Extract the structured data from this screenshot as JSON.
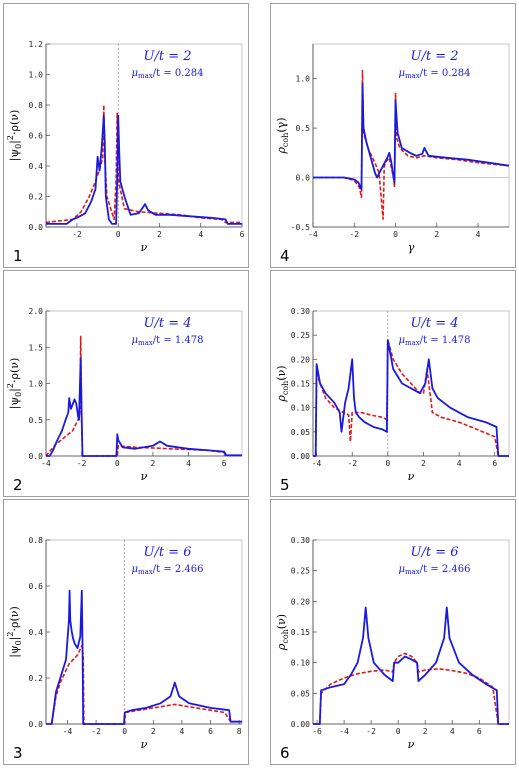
{
  "colors": {
    "dmft": "#1a1adf",
    "approx": "#e01818",
    "axis": "#444444",
    "annot": "#1a1adf"
  },
  "chart_data": [
    {
      "type": "line",
      "panel_number": "1",
      "annotation": {
        "u_label": "U/t  = 2",
        "mu_label": "μmax/t = 0.284"
      },
      "xlabel": "ν",
      "ylabel": "|ψ0|²·ρ(ν)",
      "xlim": [
        -3.5,
        6
      ],
      "ylim": [
        0,
        1.2
      ],
      "xticks": [
        -2,
        0,
        2,
        4,
        6
      ],
      "yticks": [
        0.0,
        0.2,
        0.4,
        0.6,
        0.8,
        1.0,
        1.2
      ],
      "ytick_labels": [
        "0.0",
        "0.2",
        "0.4",
        "0.6",
        "0.8",
        "1.0",
        "1.2"
      ],
      "vline": 0,
      "series": [
        {
          "color_key": "dmft",
          "style": "solid",
          "x": [
            -3.5,
            -2.5,
            -2.2,
            -2.0,
            -1.6,
            -1.3,
            -1.1,
            -1.0,
            -0.9,
            -0.8,
            -0.75,
            -0.7,
            -0.65,
            -0.6,
            -0.45,
            -0.3,
            -0.2,
            -0.1,
            -0.05,
            0.0,
            0.05,
            0.1,
            0.3,
            0.6,
            1.0,
            1.2,
            1.3,
            1.45,
            1.8,
            2.5,
            3.5,
            4.5,
            5.2,
            5.3,
            6.0
          ],
          "y": [
            0.02,
            0.02,
            0.05,
            0.06,
            0.09,
            0.17,
            0.25,
            0.46,
            0.37,
            0.52,
            0.62,
            0.73,
            0.55,
            0.2,
            0.05,
            0.02,
            0.02,
            0.02,
            0.3,
            0.73,
            0.5,
            0.3,
            0.2,
            0.08,
            0.09,
            0.13,
            0.15,
            0.11,
            0.08,
            0.08,
            0.07,
            0.06,
            0.05,
            0.02,
            0.02
          ]
        },
        {
          "color_key": "approx",
          "style": "dashed",
          "x": [
            -3.5,
            -2.2,
            -1.8,
            -1.4,
            -1.1,
            -0.9,
            -0.75,
            -0.7,
            -0.65,
            -0.55,
            -0.2,
            -0.1,
            -0.05,
            0.0,
            0.05,
            0.3,
            1.0,
            2.0,
            3.0,
            4.0,
            5.0,
            5.2,
            6.0
          ],
          "y": [
            0.03,
            0.05,
            0.1,
            0.2,
            0.3,
            0.38,
            0.45,
            0.8,
            0.45,
            0.2,
            0.05,
            0.3,
            0.75,
            0.35,
            0.28,
            0.12,
            0.1,
            0.09,
            0.08,
            0.06,
            0.05,
            0.03,
            0.03
          ]
        }
      ]
    },
    {
      "type": "line",
      "panel_number": "2",
      "annotation": {
        "u_label": "U/t  = 4",
        "mu_label": "μmax/t = 1.478"
      },
      "xlabel": "ν",
      "ylabel": "|ψ0|²·ρ(ν)",
      "xlim": [
        -4,
        7
      ],
      "ylim": [
        0,
        2.0
      ],
      "xticks": [
        -4,
        -2,
        0,
        2,
        4,
        6
      ],
      "yticks": [
        0.0,
        0.5,
        1.0,
        1.5,
        2.0
      ],
      "ytick_labels": [
        "0.0",
        "0.5",
        "1.0",
        "1.5",
        "2.0"
      ],
      "series": [
        {
          "color_key": "dmft",
          "style": "solid",
          "x": [
            -4,
            -3.8,
            -3.6,
            -3.4,
            -3.1,
            -2.9,
            -2.75,
            -2.7,
            -2.6,
            -2.4,
            -2.3,
            -2.2,
            -2.15,
            -2.05,
            -2.0,
            -1.95,
            -0.05,
            0.0,
            0.05,
            0.3,
            1.0,
            2.0,
            2.4,
            2.8,
            4.0,
            5.5,
            6.0,
            6.1,
            7.0
          ],
          "y": [
            0.0,
            0.0,
            0.08,
            0.2,
            0.35,
            0.5,
            0.6,
            0.8,
            0.65,
            0.78,
            0.72,
            0.55,
            0.5,
            1.35,
            0.6,
            0.0,
            0.0,
            0.3,
            0.22,
            0.12,
            0.1,
            0.14,
            0.2,
            0.14,
            0.1,
            0.07,
            0.06,
            0.01,
            0.01
          ]
        },
        {
          "color_key": "approx",
          "style": "dashed",
          "x": [
            -4,
            -3.5,
            -3.0,
            -2.5,
            -2.2,
            -2.1,
            -2.05,
            -2.0,
            -1.95,
            0.0,
            0.05,
            1.0,
            2.0,
            3.0,
            4.0,
            5.0,
            6.0,
            6.2
          ],
          "y": [
            0.0,
            0.15,
            0.25,
            0.35,
            0.5,
            0.6,
            1.65,
            0.5,
            0.0,
            0.0,
            0.14,
            0.12,
            0.11,
            0.1,
            0.09,
            0.08,
            0.05,
            0.01
          ]
        }
      ]
    },
    {
      "type": "line",
      "panel_number": "3",
      "annotation": {
        "u_label": "U/t  = 6",
        "mu_label": "μmax/t = 2.466"
      },
      "xlabel": "ν",
      "ylabel": "|ψ0|²·ρ(ν)",
      "xlim": [
        -5.5,
        8.2
      ],
      "ylim": [
        0,
        0.8
      ],
      "xticks": [
        -4,
        -2,
        0,
        2,
        4,
        6,
        8
      ],
      "yticks": [
        0.0,
        0.2,
        0.4,
        0.6,
        0.8
      ],
      "ytick_labels": [
        "0.0",
        "0.2",
        "0.4",
        "0.6",
        "0.8"
      ],
      "vline": 0,
      "series": [
        {
          "color_key": "dmft",
          "style": "solid",
          "x": [
            -5.5,
            -5.1,
            -4.8,
            -4.5,
            -4.1,
            -3.9,
            -3.85,
            -3.8,
            -3.7,
            -3.6,
            -3.5,
            -3.3,
            -3.1,
            -3.0,
            -2.95,
            -2.9,
            -2.85,
            -0.05,
            0.0,
            0.5,
            1.5,
            2.5,
            3.2,
            3.5,
            3.8,
            4.5,
            6.0,
            7.3,
            7.4,
            8.2
          ],
          "y": [
            0.0,
            0.0,
            0.14,
            0.2,
            0.28,
            0.45,
            0.58,
            0.45,
            0.4,
            0.37,
            0.35,
            0.33,
            0.38,
            0.58,
            0.35,
            0.0,
            0.0,
            0.0,
            0.05,
            0.06,
            0.07,
            0.09,
            0.12,
            0.18,
            0.12,
            0.09,
            0.07,
            0.06,
            0.01,
            0.01
          ]
        },
        {
          "color_key": "approx",
          "style": "dashed",
          "x": [
            -5.1,
            -4.8,
            -4.5,
            -4.2,
            -3.9,
            -3.6,
            -3.3,
            -3.0,
            -2.9,
            -2.85,
            0.0,
            0.05,
            1.0,
            2.0,
            3.0,
            3.5,
            4.0,
            5.0,
            6.0,
            7.0,
            7.4,
            8.2
          ],
          "y": [
            0.0,
            0.12,
            0.18,
            0.22,
            0.26,
            0.28,
            0.3,
            0.34,
            0.3,
            0.0,
            0.0,
            0.05,
            0.06,
            0.07,
            0.08,
            0.085,
            0.08,
            0.07,
            0.06,
            0.05,
            0.01,
            0.01
          ]
        }
      ]
    },
    {
      "type": "line",
      "panel_number": "4",
      "annotation": {
        "u_label": "U/t  = 2",
        "mu_label": "μmax/t = 0.284"
      },
      "xlabel": "γ",
      "ylabel": "ρcoh(γ)",
      "xlim": [
        -4,
        5.5
      ],
      "ylim": [
        -0.5,
        1.35
      ],
      "xticks": [
        -4,
        -2,
        0,
        2,
        4
      ],
      "yticks": [
        -0.5,
        0.0,
        0.5,
        1.0
      ],
      "ytick_labels": [
        "-0.5",
        "0.0",
        "0.5",
        "1.0"
      ],
      "series": [
        {
          "color_key": "dmft",
          "style": "solid",
          "x": [
            -4,
            -2.5,
            -2.0,
            -1.8,
            -1.65,
            -1.6,
            -1.55,
            -1.4,
            -1.2,
            -1.0,
            -0.9,
            -0.6,
            -0.4,
            -0.3,
            -0.2,
            -0.1,
            -0.05,
            0.0,
            0.1,
            0.3,
            0.7,
            1.0,
            1.3,
            1.4,
            1.6,
            2.5,
            3.5,
            4.5,
            5.5
          ],
          "y": [
            0.0,
            0.0,
            -0.02,
            -0.05,
            -0.12,
            0.95,
            0.5,
            0.35,
            0.2,
            0.05,
            0.0,
            0.12,
            0.2,
            0.25,
            0.15,
            0.0,
            -0.05,
            0.78,
            0.45,
            0.3,
            0.25,
            0.22,
            0.24,
            0.3,
            0.22,
            0.2,
            0.18,
            0.15,
            0.12
          ]
        },
        {
          "color_key": "approx",
          "style": "dashed",
          "x": [
            -4,
            -2.5,
            -2.0,
            -1.75,
            -1.65,
            -1.6,
            -1.55,
            -1.3,
            -1.0,
            -0.8,
            -0.6,
            -0.55,
            -0.5,
            -0.3,
            -0.1,
            -0.05,
            0.0,
            0.05,
            0.2,
            0.6,
            1.0,
            1.4,
            2.0,
            3.0,
            4.0,
            5.5
          ],
          "y": [
            0.0,
            0.0,
            -0.03,
            -0.1,
            -0.2,
            1.08,
            0.45,
            0.28,
            0.15,
            0.05,
            -0.42,
            0.1,
            0.15,
            0.2,
            0.0,
            -0.1,
            0.85,
            0.4,
            0.3,
            0.22,
            0.2,
            0.22,
            0.2,
            0.18,
            0.15,
            0.12
          ]
        }
      ]
    },
    {
      "type": "line",
      "panel_number": "5",
      "annotation": {
        "u_label": "U/t  = 4",
        "mu_label": "μmax/t = 1.478"
      },
      "xlabel": "ν",
      "ylabel": "ρcoh(ν)",
      "xlim": [
        -4.2,
        6.8
      ],
      "ylim": [
        0,
        0.3
      ],
      "xticks": [
        -4,
        -2,
        0,
        2,
        4,
        6
      ],
      "yticks": [
        0.0,
        0.05,
        0.1,
        0.15,
        0.2,
        0.25,
        0.3
      ],
      "ytick_labels": [
        "0.00",
        "0.05",
        "0.10",
        "0.15",
        "0.20",
        "0.25",
        "0.30"
      ],
      "vline": 0,
      "series": [
        {
          "color_key": "dmft",
          "style": "solid",
          "x": [
            -4.2,
            -4.05,
            -4.0,
            -3.8,
            -3.5,
            -3.0,
            -2.7,
            -2.6,
            -2.4,
            -2.2,
            -2.0,
            -1.9,
            -1.8,
            -1.6,
            -1.3,
            -0.8,
            -0.3,
            -0.05,
            0.0,
            0.3,
            0.8,
            1.3,
            1.8,
            2.1,
            2.3,
            2.5,
            2.8,
            3.5,
            4.5,
            5.5,
            6.1,
            6.2,
            6.8
          ],
          "y": [
            0.0,
            0.0,
            0.19,
            0.15,
            0.13,
            0.11,
            0.09,
            0.05,
            0.11,
            0.14,
            0.2,
            0.12,
            0.09,
            0.08,
            0.07,
            0.06,
            0.055,
            0.05,
            0.24,
            0.18,
            0.15,
            0.14,
            0.13,
            0.15,
            0.2,
            0.14,
            0.12,
            0.1,
            0.08,
            0.07,
            0.06,
            0.0,
            0.0
          ]
        },
        {
          "color_key": "approx",
          "style": "dashed",
          "x": [
            -4.2,
            -4.05,
            -4.0,
            -3.5,
            -3.0,
            -2.5,
            -2.2,
            -2.1,
            -2.0,
            -1.5,
            -1.0,
            -0.3,
            -0.05,
            0.0,
            0.3,
            0.8,
            1.3,
            1.8,
            2.0,
            2.2,
            2.5,
            3.0,
            4.0,
            5.0,
            6.0,
            6.2,
            6.8
          ],
          "y": [
            0.0,
            0.0,
            0.17,
            0.12,
            0.1,
            0.09,
            0.085,
            0.03,
            0.09,
            0.09,
            0.085,
            0.08,
            0.075,
            0.24,
            0.2,
            0.17,
            0.15,
            0.13,
            0.13,
            0.18,
            0.09,
            0.08,
            0.07,
            0.055,
            0.04,
            0.0,
            0.0
          ]
        }
      ]
    },
    {
      "type": "line",
      "panel_number": "6",
      "annotation": {
        "u_label": "U/t  = 6",
        "mu_label": "μmax/t = 2.466"
      },
      "xlabel": "ν",
      "ylabel": "ρcoh(ν)",
      "xlim": [
        -6.3,
        8.2
      ],
      "ylim": [
        0,
        0.3
      ],
      "xticks": [
        -6,
        -4,
        -2,
        0,
        2,
        4,
        6
      ],
      "yticks": [
        0.0,
        0.05,
        0.1,
        0.15,
        0.2,
        0.25,
        0.3
      ],
      "ytick_labels": [
        "0.00",
        "0.05",
        "0.10",
        "0.15",
        "0.20",
        "0.25",
        "0.30"
      ],
      "series": [
        {
          "color_key": "dmft",
          "style": "solid",
          "x": [
            -6.3,
            -5.8,
            -5.7,
            -5.0,
            -4.0,
            -3.5,
            -3.0,
            -2.6,
            -2.4,
            -2.2,
            -1.8,
            -1.0,
            -0.4,
            -0.3,
            0.0,
            0.5,
            1.0,
            1.4,
            1.5,
            2.0,
            2.8,
            3.4,
            3.6,
            3.8,
            4.5,
            5.5,
            6.5,
            7.3,
            7.4,
            8.2
          ],
          "y": [
            0.0,
            0.0,
            0.055,
            0.06,
            0.065,
            0.08,
            0.1,
            0.14,
            0.19,
            0.14,
            0.1,
            0.08,
            0.07,
            0.1,
            0.1,
            0.11,
            0.105,
            0.1,
            0.07,
            0.08,
            0.1,
            0.14,
            0.19,
            0.14,
            0.1,
            0.08,
            0.065,
            0.055,
            0.0,
            0.0
          ]
        },
        {
          "color_key": "approx",
          "style": "dashed",
          "x": [
            -6.3,
            -5.8,
            -5.7,
            -5.0,
            -4.0,
            -3.0,
            -2.0,
            -1.0,
            -0.4,
            -0.3,
            0.0,
            0.5,
            1.0,
            1.4,
            1.5,
            2.0,
            3.0,
            4.0,
            5.0,
            6.0,
            7.0,
            7.4,
            8.2
          ],
          "y": [
            0.0,
            0.0,
            0.05,
            0.065,
            0.075,
            0.082,
            0.086,
            0.088,
            0.085,
            0.1,
            0.11,
            0.115,
            0.11,
            0.1,
            0.085,
            0.088,
            0.09,
            0.087,
            0.083,
            0.075,
            0.06,
            0.0,
            0.0
          ]
        }
      ]
    }
  ]
}
